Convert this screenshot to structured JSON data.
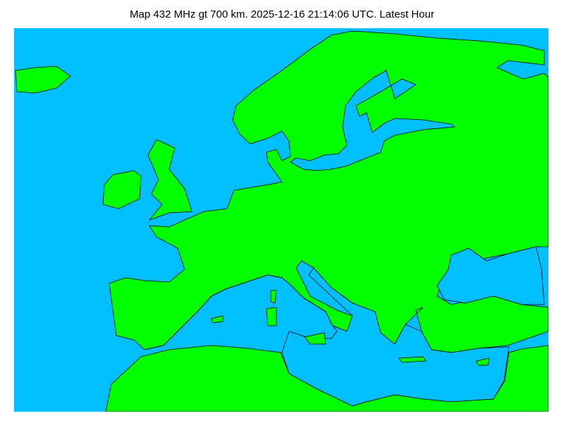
{
  "title": "Map 432 MHz gt 700 km. 2025-12-16 21:14:06 UTC. Latest Hour",
  "colors": {
    "sea": "#00bfff",
    "land": "#00ff00",
    "coastline": "#000000"
  },
  "map": {
    "region": "Europe",
    "band": "432 MHz",
    "min_distance": "700 km"
  }
}
